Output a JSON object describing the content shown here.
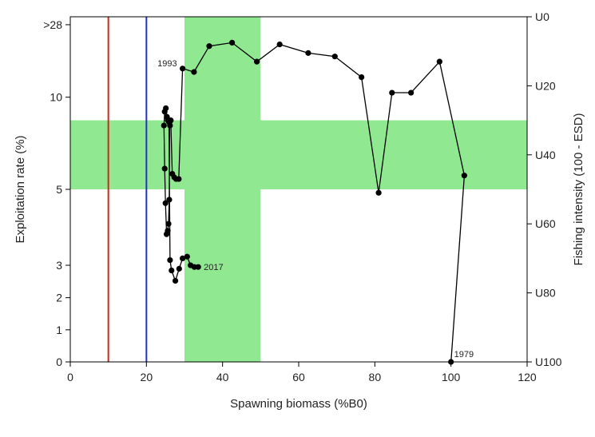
{
  "chart_data": {
    "type": "scatter",
    "title": "",
    "xlabel": "Spawning biomass (%B0)",
    "ylabel": "Exploitation rate (%)",
    "y2label": "Fishing intensity (100 - ESD)",
    "xlim": [
      0,
      120
    ],
    "xticks": [
      "0",
      "20",
      "40",
      "60",
      "80",
      "100",
      "120"
    ],
    "xtick_values": [
      0,
      20,
      40,
      60,
      80,
      100,
      120
    ],
    "yticks": [
      {
        "label": "0",
        "u": 100
      },
      {
        "label": "1",
        "u": 90.7
      },
      {
        "label": "2",
        "u": 81.4
      },
      {
        "label": "3",
        "u": 72
      },
      {
        "label": "5",
        "u": 50
      },
      {
        "label": "10",
        "u": 23.3
      },
      {
        "label": ">28",
        "u": 2.3
      }
    ],
    "y2ticks": [
      {
        "label": "U0",
        "u": 0
      },
      {
        "label": "U20",
        "u": 20
      },
      {
        "label": "U40",
        "u": 40
      },
      {
        "label": "U60",
        "u": 60
      },
      {
        "label": "U80",
        "u": 80
      },
      {
        "label": "U100",
        "u": 100
      }
    ],
    "vertical_lines": [
      {
        "x": 10,
        "color": "#cc2a1e"
      },
      {
        "x": 20,
        "color": "#2233cc"
      }
    ],
    "bands": {
      "color": "#90e890",
      "x_range": [
        30,
        50
      ],
      "u_range": [
        30,
        50
      ]
    },
    "series": [
      {
        "color": "#000000",
        "x": [
          100,
          103.5,
          97,
          89.5,
          84.5,
          81,
          76.5,
          69.5,
          62.5,
          55,
          49,
          42.5,
          36.5,
          32.5,
          29.5,
          28.5,
          27.8,
          27.3,
          26.8,
          26.4,
          26.2,
          26.1,
          26.0,
          25.8,
          25.6,
          25.3,
          25.0,
          24.8,
          24.6,
          24.8,
          25.1,
          25.4,
          25.6,
          25.9,
          26.2,
          26.6,
          27.6,
          28.6,
          29.5,
          30.7,
          31.6,
          32.6,
          33.6
        ],
        "u": [
          100,
          46,
          13,
          22,
          22,
          51,
          17.5,
          11.5,
          10.5,
          8,
          13,
          7.5,
          8.5,
          16,
          15,
          47,
          47,
          46.5,
          45.5,
          30,
          31.5,
          30.5,
          53,
          60,
          62,
          63,
          54,
          44,
          31.5,
          27.5,
          26.5,
          29,
          30,
          30.5,
          70.5,
          73.5,
          76.5,
          73,
          70,
          69.5,
          72,
          72.5,
          72.5
        ]
      }
    ],
    "annotations": [
      {
        "text": "1993",
        "x": 29.5,
        "u": 15
      },
      {
        "text": "2017",
        "x": 33.6,
        "u": 72.5
      },
      {
        "text": "1979",
        "x": 100,
        "u": 100
      }
    ]
  }
}
